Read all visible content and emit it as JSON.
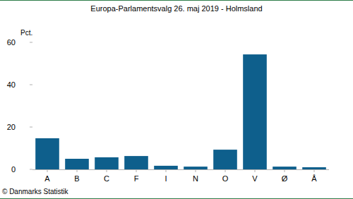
{
  "chart_data": {
    "type": "bar",
    "title": "Europa-Parlamentsvalg 26. maj 2019 - Holmsland",
    "y_label": "Pct.",
    "source": "© Danmarks Statistik",
    "categories": [
      "A",
      "B",
      "C",
      "F",
      "I",
      "N",
      "O",
      "V",
      "Ø",
      "Å"
    ],
    "values": [
      14.7,
      5.0,
      5.7,
      6.3,
      1.7,
      1.3,
      9.3,
      54.3,
      1.3,
      1.0
    ],
    "color": "#0e5f8c",
    "ylim": [
      0,
      60
    ],
    "yticks": [
      0,
      20,
      40,
      60
    ],
    "grid": false
  }
}
